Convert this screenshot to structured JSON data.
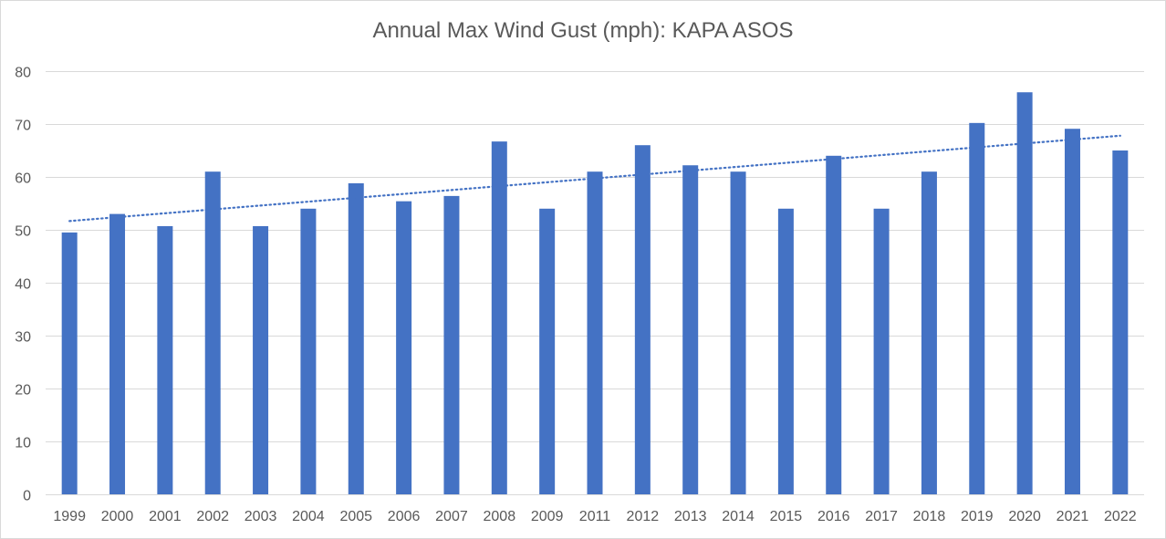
{
  "chart_data": {
    "type": "bar",
    "title": "Annual Max Wind Gust (mph): KAPA ASOS",
    "categories": [
      "1999",
      "2000",
      "2001",
      "2002",
      "2003",
      "2004",
      "2005",
      "2006",
      "2007",
      "2008",
      "2009",
      "2011",
      "2012",
      "2013",
      "2014",
      "2015",
      "2016",
      "2017",
      "2018",
      "2019",
      "2020",
      "2021",
      "2022"
    ],
    "values": [
      49.5,
      53,
      50.7,
      61,
      50.7,
      54,
      58.8,
      55.4,
      56.4,
      66.7,
      54,
      61,
      66,
      62.2,
      61,
      54,
      64,
      54,
      61,
      70.2,
      76,
      69.1,
      65
    ],
    "ylim": [
      0,
      80
    ],
    "yticks": [
      0,
      10,
      20,
      30,
      40,
      50,
      60,
      70,
      80
    ],
    "grid": true,
    "bar_color": "#4472c4",
    "trendline": {
      "type": "linear",
      "style": "dotted",
      "color": "#4472c4"
    }
  }
}
